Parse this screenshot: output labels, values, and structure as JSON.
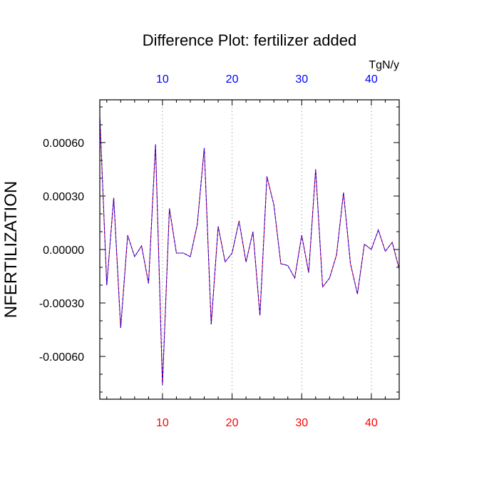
{
  "chart_data": {
    "type": "line",
    "title": "Difference Plot: fertilizer added",
    "ylabel": "NFERTILIZATION",
    "top_axis_units": "TgN/y",
    "xlim": [
      1,
      44
    ],
    "ylim": [
      -0.00084,
      0.00084
    ],
    "x_ticks": [
      10,
      20,
      30,
      40
    ],
    "x_tick_labels": [
      "10",
      "20",
      "30",
      "40"
    ],
    "y_ticks": [
      0.0006,
      0.0003,
      0.0,
      -0.0003,
      -0.0006
    ],
    "y_tick_labels": [
      "0.00060",
      "0.00030",
      "0.00000",
      "-0.00030",
      "-0.00060"
    ],
    "vertical_grid": true,
    "colors": {
      "bottom_tick_labels": "#ff0000",
      "top_tick_labels": "#0000ff",
      "series_solid": "#ff0000",
      "series_dashed": "#0000ff",
      "grid": "#aaaaaa"
    },
    "series": [
      {
        "x": [
          1,
          2,
          3,
          4,
          5,
          6,
          7,
          8,
          9,
          10,
          11,
          12,
          13,
          14,
          15,
          16,
          17,
          18,
          19,
          20,
          21,
          22,
          23,
          24,
          25,
          26,
          27,
          28,
          29,
          30,
          31,
          32,
          33,
          34,
          35,
          36,
          37,
          38,
          39,
          40,
          41,
          42,
          43,
          44
        ],
        "values": [
          0.00075,
          -0.0002,
          0.00029,
          -0.00044,
          8e-05,
          -4e-05,
          2e-05,
          -0.00019,
          0.00059,
          -0.00076,
          0.00023,
          -2e-05,
          -2e-05,
          -4e-05,
          0.00014,
          0.00057,
          -0.00042,
          0.00013,
          -7e-05,
          -2e-05,
          0.00016,
          -7e-05,
          0.0001,
          -0.00037,
          0.00041,
          0.00025,
          -8e-05,
          -9e-05,
          -0.00016,
          8e-05,
          -0.00013,
          0.00045,
          -0.00021,
          -0.00016,
          -3e-05,
          0.00032,
          -8e-05,
          -0.00025,
          3e-05,
          0.0,
          0.00011,
          -1e-05,
          4e-05,
          -0.00011
        ]
      }
    ]
  }
}
